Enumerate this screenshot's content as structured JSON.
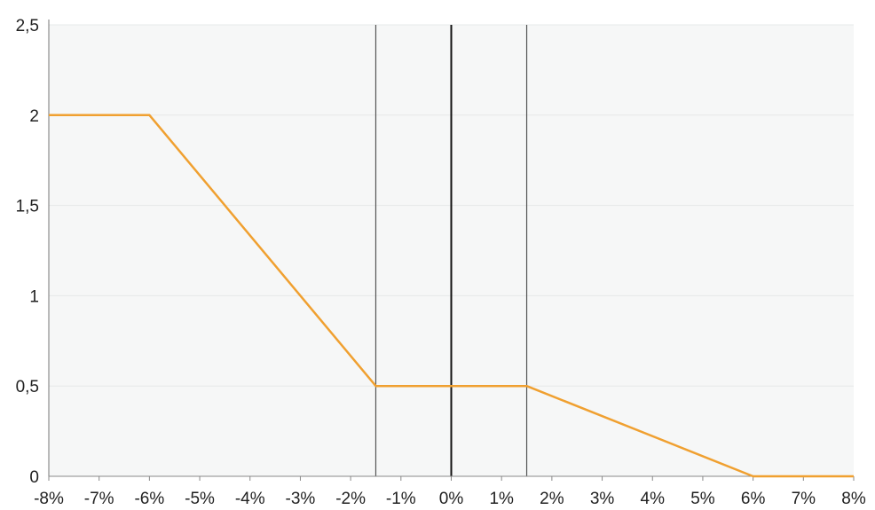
{
  "chart_data": {
    "type": "line",
    "x_ticks": [
      "-8%",
      "-7%",
      "-6%",
      "-5%",
      "-4%",
      "-3%",
      "-2%",
      "-1%",
      "0%",
      "1%",
      "2%",
      "3%",
      "4%",
      "5%",
      "6%",
      "7%",
      "8%"
    ],
    "y_ticks": [
      "0",
      "0,5",
      "1",
      "1,5",
      "2",
      "2,5"
    ],
    "xlim": [
      -8,
      8
    ],
    "ylim": [
      0,
      2.5
    ],
    "grid": "horizontal",
    "series": [
      {
        "color": "#F0A030",
        "points": [
          {
            "x": -8,
            "y": 2
          },
          {
            "x": -6,
            "y": 2
          },
          {
            "x": -1.5,
            "y": 0.5
          },
          {
            "x": 1.5,
            "y": 0.5
          },
          {
            "x": 6,
            "y": 0
          },
          {
            "x": 8,
            "y": 0
          }
        ]
      }
    ],
    "vertical_lines": [
      {
        "x": -1.5,
        "color": "#555555"
      },
      {
        "x": 0,
        "color": "#111111"
      },
      {
        "x": 1.5,
        "color": "#555555"
      }
    ],
    "plot_background": "#F6F7F7",
    "gridline_color": "#E6E8E8"
  }
}
